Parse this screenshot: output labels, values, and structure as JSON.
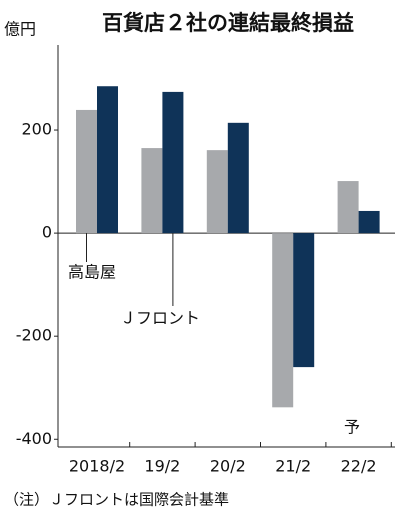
{
  "chart_data": {
    "type": "bar",
    "title": "百貨店２社の連結最終損益",
    "y_label": "億円",
    "categories": [
      "2018/2",
      "19/2",
      "20/2",
      "21/2",
      "22/2"
    ],
    "series": [
      {
        "name": "高島屋",
        "color": "#a7a9ac",
        "values": [
          239,
          165,
          161,
          -338,
          101
        ]
      },
      {
        "name": "Ｊフロント",
        "color": "#0f3358",
        "values": [
          285,
          274,
          214,
          -260,
          43
        ]
      }
    ],
    "ylim": [
      -415,
      365
    ],
    "yticks": [
      -400,
      -200,
      0,
      200
    ],
    "annotation": "予",
    "note": "（注）Ｊフロントは国際会計基準"
  }
}
